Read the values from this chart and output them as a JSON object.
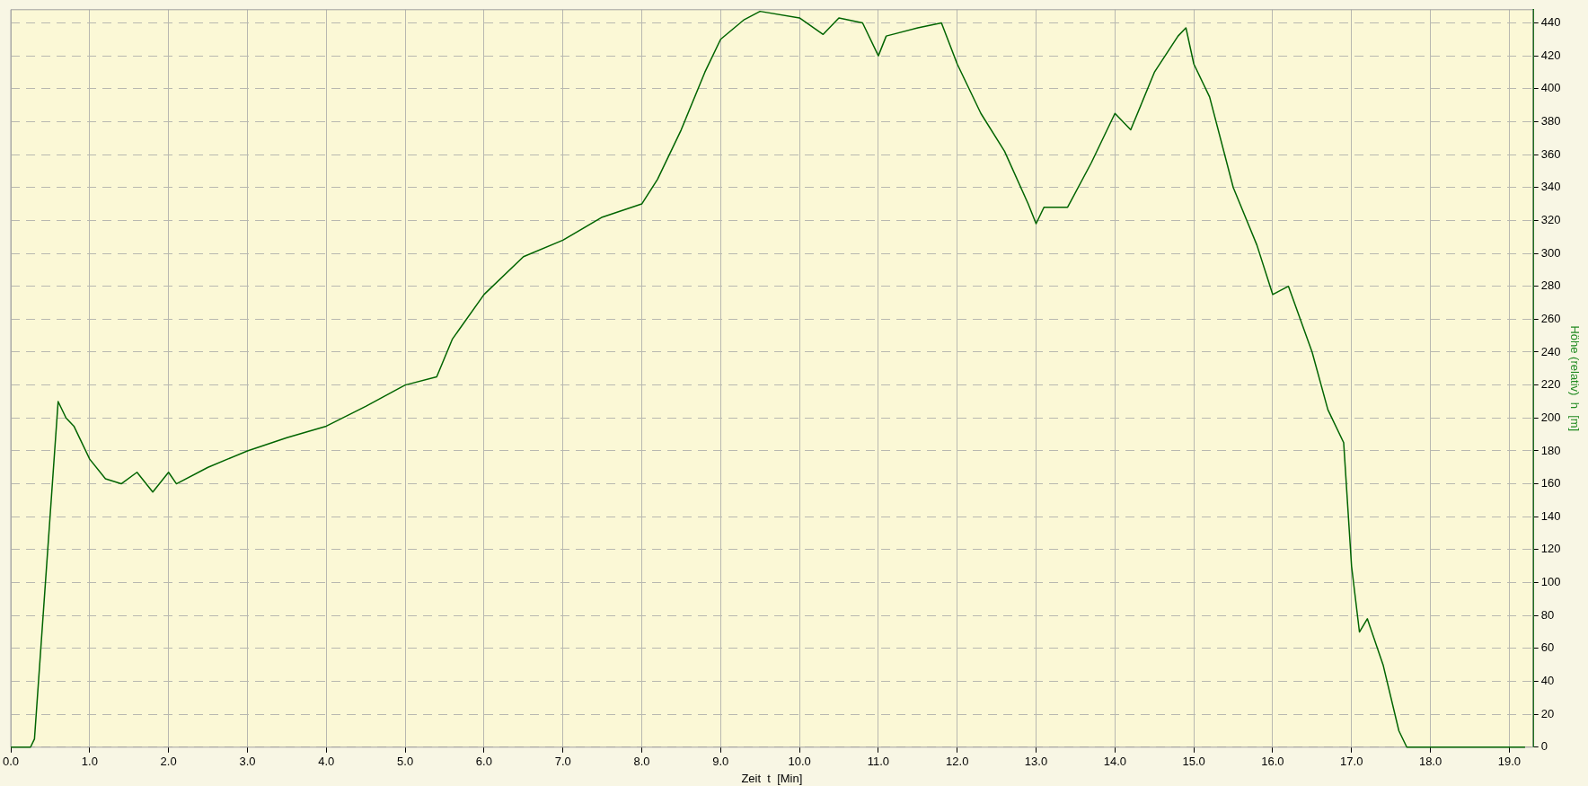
{
  "chart_data": {
    "type": "line",
    "xlabel": "Zeit  t  [Min]",
    "ylabel": "Höhe (relativ)  h  [m]",
    "xlim": [
      0,
      19.3
    ],
    "ylim": [
      0,
      448
    ],
    "xticks": [
      {
        "value": 0,
        "label": "0.0"
      },
      {
        "value": 1,
        "label": "1.0"
      },
      {
        "value": 2,
        "label": "2.0"
      },
      {
        "value": 3,
        "label": "3.0"
      },
      {
        "value": 4,
        "label": "4.0"
      },
      {
        "value": 5,
        "label": "5.0"
      },
      {
        "value": 6,
        "label": "6.0"
      },
      {
        "value": 7,
        "label": "7.0"
      },
      {
        "value": 8,
        "label": "8.0"
      },
      {
        "value": 9,
        "label": "9.0"
      },
      {
        "value": 10,
        "label": "10.0"
      },
      {
        "value": 11,
        "label": "11.0"
      },
      {
        "value": 12,
        "label": "12.0"
      },
      {
        "value": 13,
        "label": "13.0"
      },
      {
        "value": 14,
        "label": "14.0"
      },
      {
        "value": 15,
        "label": "15.0"
      },
      {
        "value": 16,
        "label": "16.0"
      },
      {
        "value": 17,
        "label": "17.0"
      },
      {
        "value": 18,
        "label": "18.0"
      },
      {
        "value": 19,
        "label": "19.0"
      }
    ],
    "yticks": [
      0,
      20,
      40,
      60,
      80,
      100,
      120,
      140,
      160,
      180,
      200,
      220,
      240,
      260,
      280,
      300,
      320,
      340,
      360,
      380,
      400,
      420,
      440
    ],
    "grid": true,
    "marker": "none",
    "line_style": "solid",
    "series": [
      {
        "color": "#006400",
        "x": [
          0,
          0.25,
          0.3,
          0.6,
          0.7,
          0.8,
          1.0,
          1.2,
          1.4,
          1.6,
          1.8,
          2.0,
          2.1,
          2.5,
          3.0,
          3.5,
          4.0,
          4.5,
          5.0,
          5.4,
          5.6,
          6.0,
          6.5,
          7.0,
          7.5,
          8.0,
          8.2,
          8.5,
          8.8,
          9.0,
          9.3,
          9.5,
          10.0,
          10.3,
          10.5,
          10.8,
          11.0,
          11.1,
          11.5,
          11.8,
          12.0,
          12.3,
          12.6,
          12.9,
          13.0,
          13.1,
          13.4,
          13.7,
          14.0,
          14.2,
          14.5,
          14.8,
          14.9,
          15.0,
          15.2,
          15.5,
          15.8,
          16.0,
          16.2,
          16.5,
          16.7,
          16.9,
          17.0,
          17.1,
          17.2,
          17.4,
          17.6,
          17.7,
          19.2
        ],
        "values": [
          0,
          0,
          5,
          210,
          200,
          195,
          175,
          163,
          160,
          167,
          155,
          167,
          160,
          170,
          180,
          188,
          195,
          207,
          220,
          225,
          248,
          275,
          298,
          308,
          322,
          330,
          345,
          375,
          410,
          430,
          442,
          447,
          443,
          433,
          443,
          440,
          420,
          432,
          437,
          440,
          415,
          385,
          362,
          330,
          318,
          328,
          328,
          355,
          385,
          375,
          410,
          432,
          437,
          415,
          395,
          340,
          305,
          275,
          280,
          240,
          205,
          185,
          110,
          70,
          78,
          50,
          10,
          0,
          0
        ]
      }
    ]
  }
}
